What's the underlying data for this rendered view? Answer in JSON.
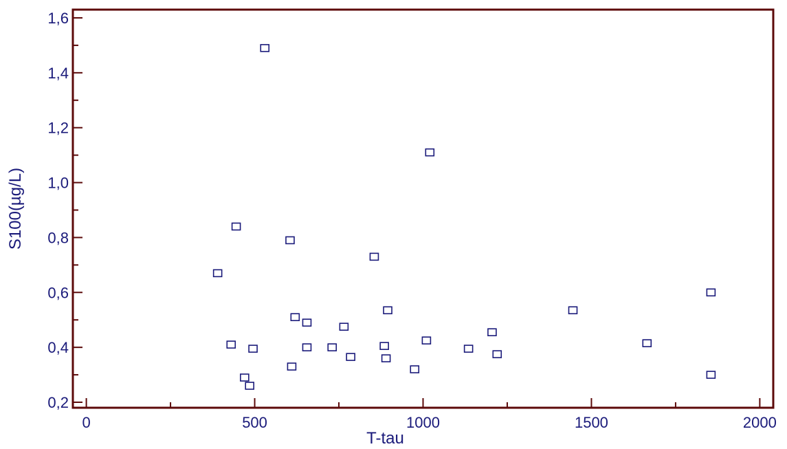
{
  "chart_data": {
    "type": "scatter",
    "xlabel": "T-tau",
    "ylabel": "S100(µg/L)",
    "xlim": [
      -40,
      2040
    ],
    "ylim": [
      0.18,
      1.63
    ],
    "x_ticks": [
      0,
      500,
      1000,
      1500,
      2000
    ],
    "x_tick_labels": [
      "0",
      "500",
      "1000",
      "1500",
      "2000"
    ],
    "y_ticks": [
      0.2,
      0.4,
      0.6,
      0.8,
      1.0,
      1.2,
      1.4,
      1.6
    ],
    "y_tick_labels": [
      "0,2",
      "0,4",
      "0,6",
      "0,8",
      "1,0",
      "1,2",
      "1,4",
      "1,6"
    ],
    "grid": false,
    "colors": {
      "frame": "#5c0a0a",
      "marker": "#1a1a7a",
      "text": "#1a1a7a"
    },
    "series": [
      {
        "marker": "open-square",
        "points": [
          [
            530,
            1.49
          ],
          [
            1020,
            1.11
          ],
          [
            445,
            0.84
          ],
          [
            605,
            0.79
          ],
          [
            855,
            0.73
          ],
          [
            390,
            0.67
          ],
          [
            1855,
            0.6
          ],
          [
            895,
            0.535
          ],
          [
            1445,
            0.535
          ],
          [
            620,
            0.51
          ],
          [
            655,
            0.49
          ],
          [
            765,
            0.475
          ],
          [
            1205,
            0.455
          ],
          [
            1010,
            0.425
          ],
          [
            1665,
            0.415
          ],
          [
            430,
            0.41
          ],
          [
            885,
            0.405
          ],
          [
            655,
            0.4
          ],
          [
            730,
            0.4
          ],
          [
            495,
            0.395
          ],
          [
            1135,
            0.395
          ],
          [
            1220,
            0.375
          ],
          [
            785,
            0.365
          ],
          [
            890,
            0.36
          ],
          [
            610,
            0.33
          ],
          [
            975,
            0.32
          ],
          [
            1855,
            0.3
          ],
          [
            470,
            0.29
          ],
          [
            485,
            0.26
          ]
        ]
      }
    ]
  }
}
